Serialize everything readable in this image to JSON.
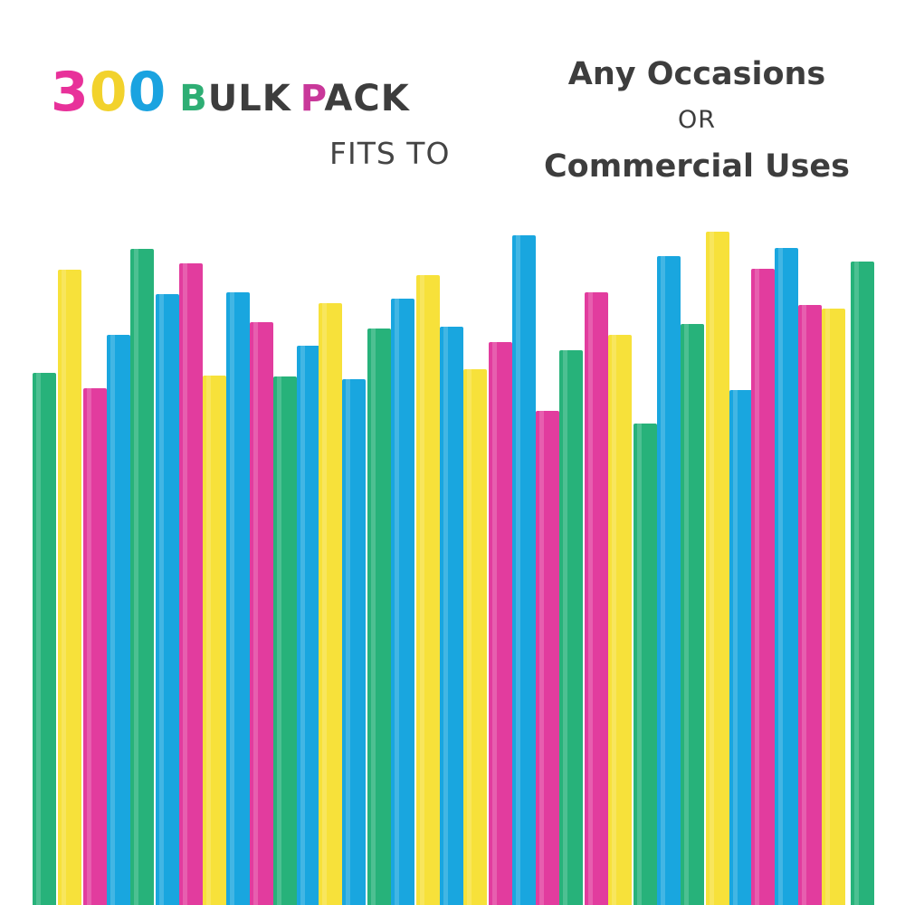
{
  "headline": {
    "digits": [
      {
        "char": "3",
        "color": "#e8319a"
      },
      {
        "char": "0",
        "color": "#f2d22c"
      },
      {
        "char": "0",
        "color": "#1aa3e0"
      }
    ],
    "bulk_letters": [
      {
        "char": "B",
        "color": "#2eae74"
      },
      {
        "char": "ULK",
        "color": "#3d3d3d"
      }
    ],
    "pack_letters": [
      {
        "char": "P",
        "color": "#c9389a"
      },
      {
        "char": "ACK",
        "color": "#3d3d3d"
      }
    ],
    "fits": "FITS TO"
  },
  "uses": {
    "line1": "Any Occasions",
    "line2": "OR",
    "line3": "Commercial Uses"
  },
  "palette": {
    "green": "#27b27a",
    "yellow": "#f7e13a",
    "pink": "#e23c9e",
    "blue": "#19a6df"
  },
  "straws": [
    {
      "color": "green"
    },
    {
      "color": "yellow"
    },
    {
      "color": "pink"
    },
    {
      "color": "blue"
    },
    {
      "color": "green"
    },
    {
      "color": "blue"
    },
    {
      "color": "pink"
    },
    {
      "color": "yellow"
    },
    {
      "color": "blue"
    },
    {
      "color": "pink"
    },
    {
      "color": "green"
    },
    {
      "color": "blue"
    },
    {
      "color": "yellow"
    },
    {
      "color": "blue"
    },
    {
      "color": "green"
    },
    {
      "color": "blue"
    },
    {
      "color": "yellow"
    },
    {
      "color": "blue"
    },
    {
      "color": "yellow"
    },
    {
      "color": "pink"
    },
    {
      "color": "blue"
    },
    {
      "color": "pink"
    },
    {
      "color": "green"
    },
    {
      "color": "pink"
    },
    {
      "color": "yellow"
    },
    {
      "color": "green"
    },
    {
      "color": "blue"
    },
    {
      "color": "green"
    },
    {
      "color": "yellow"
    },
    {
      "color": "blue"
    },
    {
      "color": "pink"
    },
    {
      "color": "blue"
    },
    {
      "color": "pink"
    },
    {
      "color": "yellow"
    },
    {
      "color": "green"
    }
  ]
}
